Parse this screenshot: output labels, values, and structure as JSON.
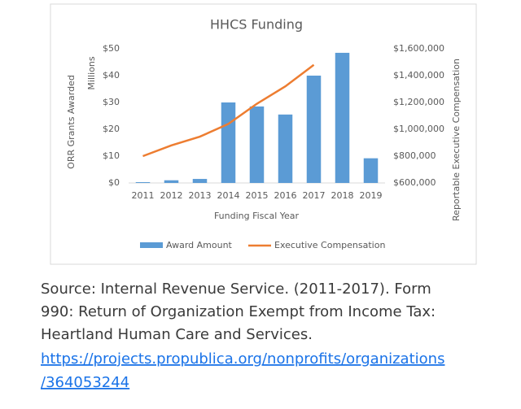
{
  "chart_data": {
    "type": "bar-line",
    "title": "HHCS Funding",
    "x_label": "Funding Fiscal Year",
    "y_label": "ORR Grants Awarded",
    "y_unit": "Millions",
    "y2_label": "Reportable Executive Compensation",
    "categories": [
      "2011",
      "2012",
      "2013",
      "2014",
      "2015",
      "2016",
      "2017",
      "2018",
      "2019"
    ],
    "series": [
      {
        "name": "Award Amount",
        "type": "bar",
        "color": "#5b9bd5",
        "values": [
          0.3,
          1,
          1.5,
          30,
          28.5,
          25.5,
          40,
          48.5,
          9.2
        ]
      },
      {
        "name": "Executive Compensation",
        "type": "line",
        "axis": "y2",
        "color": "#ed7d31",
        "values": [
          800000,
          880000,
          945000,
          1040000,
          1190000,
          1320000,
          1480000,
          null,
          null
        ]
      }
    ],
    "ylim": [
      0,
      50
    ],
    "yticks": [
      {
        "value": 0,
        "label": "$0"
      },
      {
        "value": 10,
        "label": "$10"
      },
      {
        "value": 20,
        "label": "$20"
      },
      {
        "value": 30,
        "label": "$30"
      },
      {
        "value": 40,
        "label": "$40"
      },
      {
        "value": 50,
        "label": "$50"
      }
    ],
    "y2lim": [
      600000,
      1600000
    ],
    "y2ticks": [
      {
        "value": 600000,
        "label": "$600,000"
      },
      {
        "value": 800000,
        "label": "$800,000"
      },
      {
        "value": 1000000,
        "label": "$1,000,000"
      },
      {
        "value": 1200000,
        "label": "$1,200,000"
      },
      {
        "value": 1400000,
        "label": "$1,400,000"
      },
      {
        "value": 1600000,
        "label": "$1,600,000"
      }
    ],
    "grid": false,
    "legend": "bottom"
  },
  "caption": [
    "Source: Internal Revenue Service. (2011-2017). Form",
    "990: Return of Organization Exempt from Income Tax:",
    "Heartland Human Care and Services."
  ],
  "link": [
    "https://projects.propublica.org/nonprofits/organizations",
    "/364053244"
  ]
}
